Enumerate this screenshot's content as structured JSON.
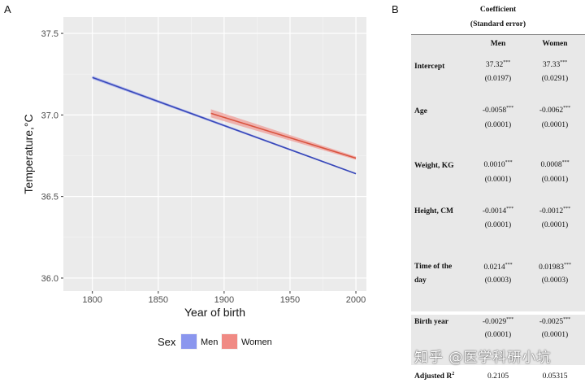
{
  "panel_labels": {
    "a": "A",
    "b": "B"
  },
  "chart_data": {
    "type": "line",
    "xlabel": "Year of birth",
    "ylabel": "Temperature,°C",
    "xlim": [
      1778,
      2008
    ],
    "ylim": [
      35.92,
      37.6
    ],
    "xticks": [
      1800,
      1850,
      1900,
      1950,
      2000
    ],
    "yticks": [
      36.0,
      36.5,
      37.0,
      37.5
    ],
    "ytick_labels": [
      "36.0",
      "36.5",
      "37.0",
      "37.5"
    ],
    "grid": true,
    "legend": {
      "title": "Sex",
      "position": "bottom"
    },
    "series": [
      {
        "name": "Men",
        "color": "#3848b8",
        "band_color": "#8a96ee",
        "x": [
          1800,
          2000
        ],
        "y": [
          37.23,
          36.64
        ],
        "band": 0.01
      },
      {
        "name": "Women",
        "color": "#d9533f",
        "band_color": "#f08a84",
        "x": [
          1890,
          2000
        ],
        "y": [
          37.01,
          36.735
        ],
        "band": 0.025
      }
    ]
  },
  "table": {
    "title": "Coefficient",
    "subtitle": "(Standard error)",
    "col_men": "Men",
    "col_women": "Women",
    "rows": [
      {
        "label": "Intercept",
        "men": "37.32",
        "men_se": "(0.0197)",
        "women": "37.33",
        "women_se": "(0.0291)",
        "stars": "***"
      },
      {
        "label": "Age",
        "men": "-0.0058",
        "men_se": "(0.0001)",
        "women": "-0.0062",
        "women_se": "(0.0001)",
        "stars": "***"
      },
      {
        "label": "Weight, KG",
        "men": "0.0010",
        "men_se": "(0.0001)",
        "women": "0.0008",
        "women_se": "(0.0001)",
        "stars": "***"
      },
      {
        "label": "Height, CM",
        "men": "-0.0014",
        "men_se": "(0.0001)",
        "women": "-0.0012",
        "women_se": "(0.0001)",
        "stars": "***"
      },
      {
        "label": "Time of the",
        "label2": "day",
        "men": "0.0214",
        "men_se": "(0.0003)",
        "women": "0.01983",
        "women_se": "(0.0003)",
        "stars": "***"
      },
      {
        "label": "Birth year",
        "men": "-0.0029",
        "men_se": "(0.0001)",
        "women": "-0.0025",
        "women_se": "(0.0001)",
        "stars": "***"
      }
    ],
    "adj_label": "Adjusted R",
    "adj_sup": "2",
    "adj_men": "0.2105",
    "adj_women": "0.05315"
  },
  "watermark": "知乎 @医学科研小坑"
}
